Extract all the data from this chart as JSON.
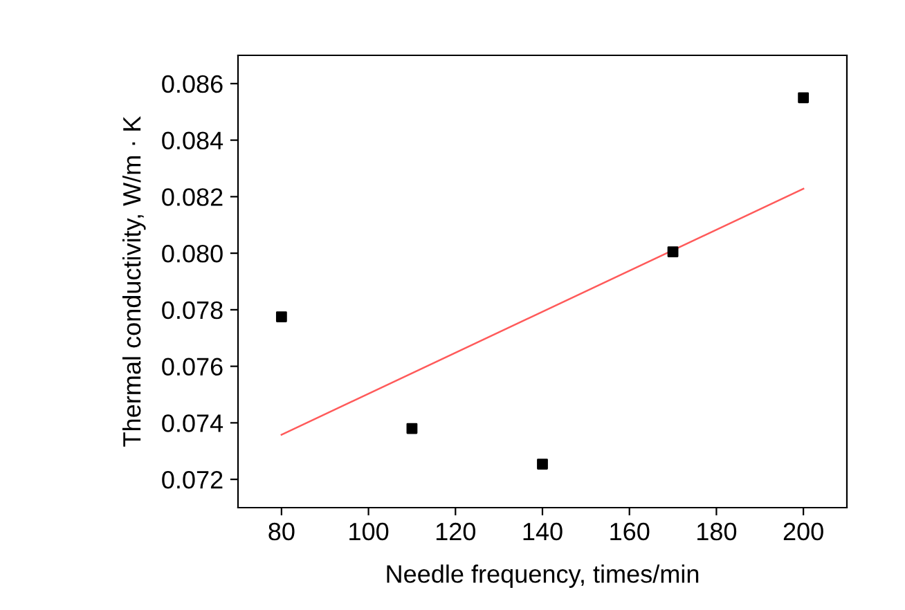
{
  "chart_data": {
    "type": "scatter",
    "xlabel": "Needle frequency, times/min",
    "ylabel": "Thermal conductivity, W/m · K",
    "grid": false,
    "series": [
      {
        "marker": "square",
        "color": "#000000",
        "x": [
          80,
          110,
          140,
          170,
          200
        ],
        "values": [
          0.07775,
          0.0738,
          0.07254,
          0.08005,
          0.0855
        ]
      },
      {
        "type": "line",
        "color": "#ff5a5a",
        "x": [
          80,
          200
        ],
        "values": [
          0.07358,
          0.08228
        ]
      }
    ],
    "xlim": [
      70,
      210
    ],
    "xticks": [
      80,
      100,
      120,
      140,
      160,
      180,
      200
    ],
    "ylim": [
      0.071,
      0.087
    ],
    "yticks": [
      {
        "value": 0.072,
        "label": "0.072"
      },
      {
        "value": 0.074,
        "label": "0.074"
      },
      {
        "value": 0.076,
        "label": "0.076"
      },
      {
        "value": 0.078,
        "label": "0.078"
      },
      {
        "value": 0.08,
        "label": "0.080"
      },
      {
        "value": 0.082,
        "label": "0.082"
      },
      {
        "value": 0.084,
        "label": "0.084"
      },
      {
        "value": 0.086,
        "label": "0.086"
      }
    ]
  }
}
